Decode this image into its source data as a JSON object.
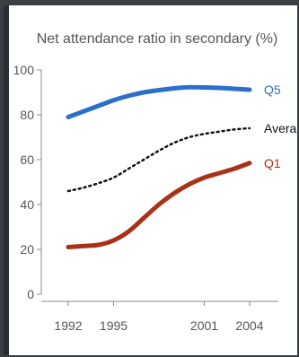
{
  "chart_data": {
    "type": "line",
    "title": "Net attendance ratio in secondary (%)",
    "xlabel": "",
    "ylabel": "",
    "categories": [
      "1992",
      "1995",
      "2001",
      "2004"
    ],
    "ylim": [
      0,
      100
    ],
    "yticks": [
      0,
      20,
      40,
      60,
      80,
      100
    ],
    "grid": false,
    "legend": "inline-right",
    "series": [
      {
        "name": "Q5",
        "style": "solid",
        "color": "#2a6fc9",
        "points": [
          [
            1992,
            79
          ],
          [
            1993,
            81.5
          ],
          [
            1994,
            84
          ],
          [
            1995,
            86.5
          ],
          [
            1996,
            88.5
          ],
          [
            1997,
            90
          ],
          [
            1998,
            91
          ],
          [
            1999,
            91.8
          ],
          [
            2000,
            92.3
          ],
          [
            2001,
            92.2
          ],
          [
            2002,
            92
          ],
          [
            2003,
            91.6
          ],
          [
            2004,
            91.2
          ]
        ]
      },
      {
        "name": "Average",
        "style": "dotted",
        "color": "#111111",
        "points": [
          [
            1992,
            46
          ],
          [
            1993,
            47.5
          ],
          [
            1994,
            49.5
          ],
          [
            1995,
            52
          ],
          [
            1996,
            56
          ],
          [
            1997,
            60
          ],
          [
            1998,
            64
          ],
          [
            1999,
            67.5
          ],
          [
            2000,
            70
          ],
          [
            2001,
            71.5
          ],
          [
            2002,
            72.5
          ],
          [
            2003,
            73.5
          ],
          [
            2004,
            74
          ]
        ]
      },
      {
        "name": "Q1",
        "style": "solid",
        "color": "#a83216",
        "points": [
          [
            1992,
            21
          ],
          [
            1993,
            21.5
          ],
          [
            1994,
            22
          ],
          [
            1995,
            24
          ],
          [
            1996,
            28
          ],
          [
            1997,
            34
          ],
          [
            1998,
            40
          ],
          [
            1999,
            45
          ],
          [
            2000,
            49
          ],
          [
            2001,
            52
          ],
          [
            2002,
            54
          ],
          [
            2003,
            56
          ],
          [
            2004,
            58.5
          ]
        ]
      }
    ]
  }
}
